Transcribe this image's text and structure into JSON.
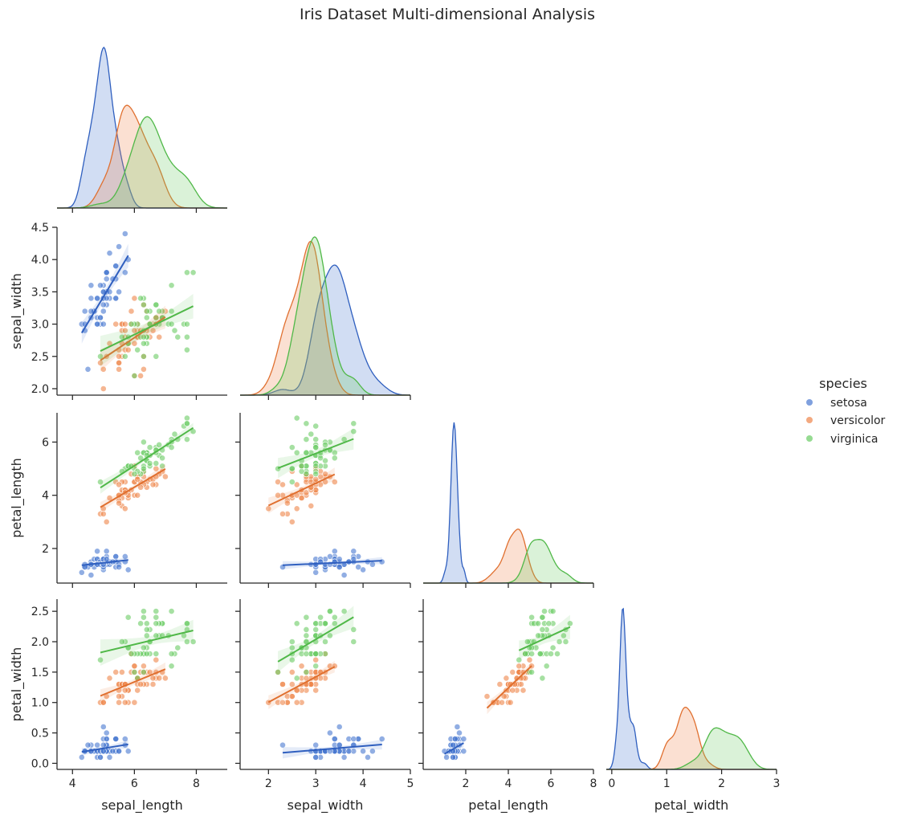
{
  "chart_data": {
    "type": "pairplot",
    "title": "Iris Dataset Multi-dimensional Analysis",
    "variables": [
      "sepal_length",
      "sepal_width",
      "petal_length",
      "petal_width"
    ],
    "hue": "species",
    "diag_kind": "kde",
    "off_diag_kind": "scatter with linear regression fit and 95% CI band",
    "corner": true,
    "legend": {
      "title": "species",
      "position": "right",
      "entries": [
        {
          "label": "setosa",
          "color": "#4878d0"
        },
        {
          "label": "versicolor",
          "color": "#ee854a"
        },
        {
          "label": "virginica",
          "color": "#6acc64"
        }
      ]
    },
    "axes": {
      "sepal_length": {
        "range": [
          3.5,
          9.0
        ],
        "ticks": [
          4,
          6,
          8
        ],
        "tick_labels": [
          "4",
          "6",
          "8"
        ]
      },
      "sepal_width": {
        "range": [
          1.4,
          5.0
        ],
        "ticks": [
          2,
          3,
          4,
          5
        ],
        "tick_labels": [
          "2",
          "3",
          "4",
          "5"
        ],
        "row_ticks": [
          2.0,
          2.5,
          3.0,
          3.5,
          4.0,
          4.5
        ],
        "row_tick_labels": [
          "2.0",
          "2.5",
          "3.0",
          "3.5",
          "4.0",
          "4.5"
        ],
        "row_range": [
          1.9,
          4.5
        ]
      },
      "petal_length": {
        "range": [
          0,
          8
        ],
        "ticks": [
          2,
          4,
          6,
          8
        ],
        "tick_labels": [
          "2",
          "4",
          "6",
          "8"
        ],
        "row_ticks": [
          2,
          4,
          6
        ],
        "row_tick_labels": [
          "2",
          "4",
          "6"
        ],
        "row_range": [
          0.7,
          7.1
        ]
      },
      "petal_width": {
        "range": [
          -0.1,
          3.0
        ],
        "ticks": [
          0,
          1,
          2,
          3
        ],
        "tick_labels": [
          "0",
          "1",
          "2",
          "3"
        ],
        "row_ticks": [
          0.0,
          0.5,
          1.0,
          1.5,
          2.0,
          2.5
        ],
        "row_tick_labels": [
          "0.0",
          "0.5",
          "1.0",
          "1.5",
          "2.0",
          "2.5"
        ],
        "row_range": [
          -0.1,
          2.7
        ]
      }
    },
    "setosa": {
      "sepal_length": [
        5.1,
        4.9,
        4.7,
        4.6,
        5.0,
        5.4,
        4.6,
        5.0,
        4.4,
        4.9,
        5.4,
        4.8,
        4.8,
        4.3,
        5.8,
        5.7,
        5.4,
        5.1,
        5.7,
        5.1,
        5.4,
        5.1,
        4.6,
        5.1,
        4.8,
        5.0,
        5.0,
        5.2,
        5.2,
        4.7,
        4.8,
        5.4,
        5.2,
        5.5,
        4.9,
        5.0,
        5.5,
        4.9,
        4.4,
        5.1,
        5.0,
        4.5,
        4.4,
        5.0,
        5.1,
        4.8,
        5.1,
        4.6,
        5.3,
        5.0
      ],
      "sepal_width": [
        3.5,
        3.0,
        3.2,
        3.1,
        3.6,
        3.9,
        3.4,
        3.4,
        2.9,
        3.1,
        3.7,
        3.4,
        3.0,
        3.0,
        4.0,
        4.4,
        3.9,
        3.5,
        3.8,
        3.8,
        3.4,
        3.7,
        3.6,
        3.3,
        3.4,
        3.0,
        3.4,
        3.5,
        3.4,
        3.2,
        3.1,
        3.4,
        4.1,
        4.2,
        3.1,
        3.2,
        3.5,
        3.6,
        3.0,
        3.4,
        3.5,
        2.3,
        3.2,
        3.5,
        3.8,
        3.0,
        3.8,
        3.2,
        3.7,
        3.3
      ],
      "petal_length": [
        1.4,
        1.4,
        1.3,
        1.5,
        1.4,
        1.7,
        1.4,
        1.5,
        1.4,
        1.5,
        1.5,
        1.6,
        1.4,
        1.1,
        1.2,
        1.5,
        1.3,
        1.4,
        1.7,
        1.5,
        1.7,
        1.5,
        1.0,
        1.7,
        1.9,
        1.6,
        1.6,
        1.5,
        1.4,
        1.6,
        1.6,
        1.5,
        1.5,
        1.4,
        1.5,
        1.2,
        1.3,
        1.4,
        1.3,
        1.5,
        1.3,
        1.3,
        1.3,
        1.6,
        1.9,
        1.4,
        1.6,
        1.4,
        1.5,
        1.4
      ],
      "petal_width": [
        0.2,
        0.2,
        0.2,
        0.2,
        0.2,
        0.4,
        0.3,
        0.2,
        0.2,
        0.1,
        0.2,
        0.2,
        0.1,
        0.1,
        0.2,
        0.4,
        0.4,
        0.3,
        0.3,
        0.3,
        0.2,
        0.4,
        0.2,
        0.5,
        0.2,
        0.2,
        0.4,
        0.2,
        0.2,
        0.2,
        0.2,
        0.4,
        0.1,
        0.2,
        0.2,
        0.2,
        0.2,
        0.1,
        0.2,
        0.2,
        0.3,
        0.3,
        0.2,
        0.6,
        0.4,
        0.3,
        0.2,
        0.2,
        0.2,
        0.2
      ]
    },
    "versicolor": {
      "sepal_length": [
        7.0,
        6.4,
        6.9,
        5.5,
        6.5,
        5.7,
        6.3,
        4.9,
        6.6,
        5.2,
        5.0,
        5.9,
        6.0,
        6.1,
        5.6,
        6.7,
        5.6,
        5.8,
        6.2,
        5.6,
        5.9,
        6.1,
        6.3,
        6.1,
        6.4,
        6.6,
        6.8,
        6.7,
        6.0,
        5.7,
        5.5,
        5.5,
        5.8,
        6.0,
        5.4,
        6.0,
        6.7,
        6.3,
        5.6,
        5.5,
        5.5,
        6.1,
        5.8,
        5.0,
        5.6,
        5.7,
        5.7,
        6.2,
        5.1,
        5.7
      ],
      "sepal_width": [
        3.2,
        3.2,
        3.1,
        2.3,
        2.8,
        2.8,
        3.3,
        2.4,
        2.9,
        2.7,
        2.0,
        3.0,
        2.2,
        2.9,
        2.9,
        3.1,
        3.0,
        2.7,
        2.2,
        2.5,
        3.2,
        2.8,
        2.5,
        2.8,
        2.9,
        3.0,
        2.8,
        3.0,
        2.9,
        2.6,
        2.4,
        2.4,
        2.7,
        2.7,
        3.0,
        3.4,
        3.1,
        2.3,
        3.0,
        2.5,
        2.6,
        3.0,
        2.6,
        2.3,
        2.7,
        3.0,
        2.9,
        2.9,
        2.5,
        2.8
      ],
      "petal_length": [
        4.7,
        4.5,
        4.9,
        4.0,
        4.6,
        4.5,
        4.7,
        3.3,
        4.6,
        3.9,
        3.5,
        4.2,
        4.0,
        4.7,
        3.6,
        4.4,
        4.5,
        4.1,
        4.5,
        3.9,
        4.8,
        4.0,
        4.9,
        4.7,
        4.3,
        4.4,
        4.8,
        5.0,
        4.5,
        3.5,
        3.8,
        3.7,
        3.9,
        5.1,
        4.5,
        4.5,
        4.7,
        4.4,
        4.1,
        4.0,
        4.4,
        4.6,
        4.0,
        3.3,
        4.2,
        4.2,
        4.2,
        4.3,
        3.0,
        4.1
      ],
      "petal_width": [
        1.4,
        1.5,
        1.5,
        1.3,
        1.5,
        1.3,
        1.6,
        1.0,
        1.3,
        1.4,
        1.0,
        1.5,
        1.0,
        1.4,
        1.3,
        1.4,
        1.5,
        1.0,
        1.5,
        1.1,
        1.8,
        1.3,
        1.5,
        1.2,
        1.3,
        1.4,
        1.4,
        1.7,
        1.5,
        1.0,
        1.1,
        1.0,
        1.2,
        1.6,
        1.5,
        1.6,
        1.5,
        1.3,
        1.3,
        1.3,
        1.2,
        1.4,
        1.2,
        1.0,
        1.3,
        1.2,
        1.3,
        1.3,
        1.1,
        1.3
      ]
    },
    "virginica": {
      "sepal_length": [
        6.3,
        5.8,
        7.1,
        6.3,
        6.5,
        7.6,
        4.9,
        7.3,
        6.7,
        7.2,
        6.5,
        6.4,
        6.8,
        5.7,
        5.8,
        6.4,
        6.5,
        7.7,
        7.7,
        6.0,
        6.9,
        5.6,
        7.7,
        6.3,
        6.7,
        7.2,
        6.2,
        6.1,
        6.4,
        7.2,
        7.4,
        7.9,
        6.4,
        6.3,
        6.1,
        7.7,
        6.3,
        6.4,
        6.0,
        6.9,
        6.7,
        6.9,
        5.8,
        6.8,
        6.7,
        6.7,
        6.3,
        6.5,
        6.2,
        5.9
      ],
      "sepal_width": [
        3.3,
        2.7,
        3.0,
        2.9,
        3.0,
        3.0,
        2.5,
        2.9,
        2.5,
        3.6,
        3.2,
        2.7,
        3.0,
        2.5,
        2.8,
        3.2,
        3.0,
        3.8,
        2.6,
        2.2,
        3.2,
        2.8,
        2.8,
        2.7,
        3.3,
        3.2,
        2.8,
        3.0,
        2.8,
        3.0,
        2.8,
        3.8,
        2.8,
        2.8,
        2.6,
        3.0,
        3.4,
        3.1,
        3.0,
        3.1,
        3.1,
        3.1,
        2.7,
        3.2,
        3.3,
        3.0,
        2.5,
        3.0,
        3.4,
        3.0
      ],
      "petal_length": [
        6.0,
        5.1,
        5.9,
        5.6,
        5.8,
        6.6,
        4.5,
        6.3,
        5.8,
        6.1,
        5.1,
        5.3,
        5.5,
        5.0,
        5.1,
        5.3,
        5.5,
        6.7,
        6.9,
        5.0,
        5.7,
        4.9,
        6.7,
        4.9,
        5.7,
        6.0,
        4.8,
        4.9,
        5.6,
        5.8,
        6.1,
        6.4,
        5.6,
        5.1,
        5.6,
        6.1,
        5.6,
        5.5,
        4.8,
        5.4,
        5.6,
        5.1,
        5.1,
        5.9,
        5.7,
        5.2,
        5.0,
        5.2,
        5.4,
        5.1
      ],
      "petal_width": [
        2.5,
        1.9,
        2.1,
        1.8,
        2.2,
        2.1,
        1.7,
        1.8,
        1.8,
        2.5,
        2.0,
        1.9,
        2.1,
        2.0,
        2.4,
        2.3,
        1.8,
        2.2,
        2.3,
        1.5,
        2.3,
        2.0,
        2.0,
        1.8,
        2.1,
        1.8,
        1.8,
        1.8,
        2.1,
        1.6,
        1.9,
        2.0,
        2.2,
        1.5,
        1.4,
        2.3,
        2.4,
        1.8,
        1.8,
        2.1,
        2.4,
        2.3,
        1.9,
        2.3,
        2.5,
        2.3,
        1.9,
        2.0,
        2.3,
        1.8
      ]
    }
  }
}
